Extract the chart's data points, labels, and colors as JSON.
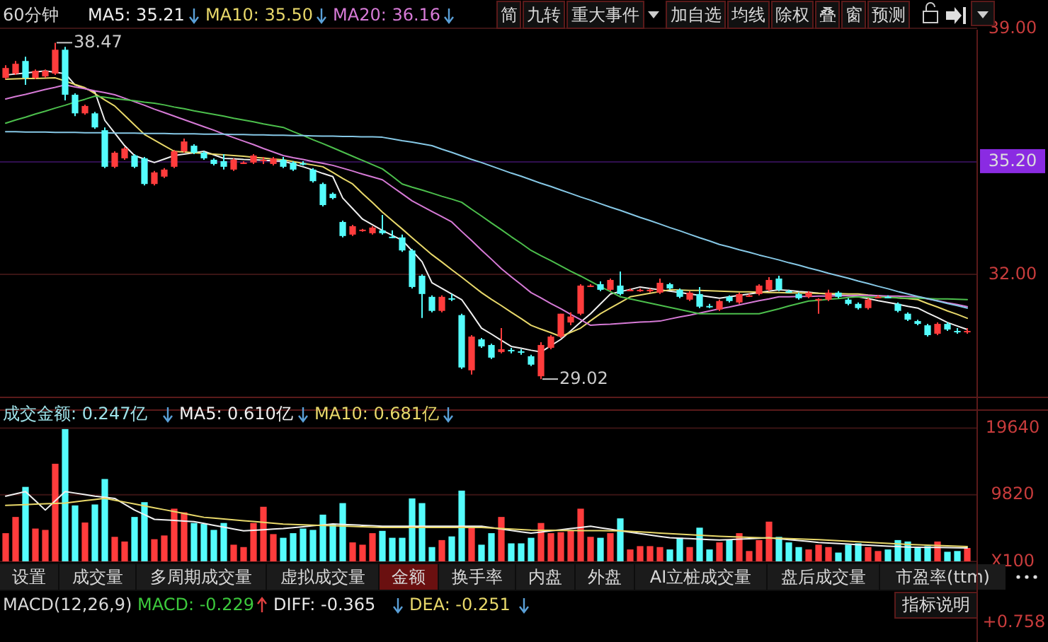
{
  "chart_data": [
    {
      "type": "candlestick",
      "title": "60分钟",
      "legend": "top",
      "grid": "y",
      "tick_labels": "y",
      "categories": [
        null,
        null,
        null,
        null,
        null,
        null,
        null,
        null,
        null,
        null,
        null,
        null,
        null,
        null,
        null,
        null,
        null,
        null,
        null,
        null,
        null,
        null,
        null,
        null,
        null,
        null,
        null,
        null,
        null,
        null,
        null,
        null,
        null,
        null,
        null,
        null,
        null,
        null,
        null,
        null,
        null,
        null,
        null,
        null,
        null,
        null,
        null,
        null,
        null,
        null,
        null,
        null,
        null,
        null,
        null,
        null,
        null,
        null,
        null,
        null,
        null,
        null,
        null,
        null,
        null,
        null,
        null,
        null,
        null,
        null,
        null,
        null,
        null,
        null,
        null,
        null,
        null,
        null,
        null,
        null,
        null,
        null,
        null,
        null,
        null,
        null,
        null,
        null,
        null,
        null,
        null,
        null,
        null,
        null,
        null,
        null,
        null,
        null
      ],
      "ylim": [
        28.5,
        39.0
      ],
      "yticks": [
        {
          "value": 39,
          "label": "39.00"
        },
        {
          "value": 32,
          "label": "32.00"
        }
      ],
      "ref_lines": [
        {
          "axis": "y",
          "value": 35.2,
          "label": "35.20",
          "color": "#8a2be2"
        }
      ],
      "ohlc": [
        [
          37.59,
          37.95,
          37.55,
          37.87
        ],
        [
          37.71,
          38.07,
          37.67,
          37.99
        ],
        [
          38.07,
          38.19,
          37.39,
          37.59
        ],
        [
          37.59,
          37.83,
          37.55,
          37.79
        ],
        [
          37.63,
          37.83,
          37.59,
          37.79
        ],
        [
          37.71,
          38.59,
          37.67,
          38.39
        ],
        [
          38.39,
          38.47,
          36.95,
          37.11
        ],
        [
          37.11,
          37.15,
          36.5,
          36.58
        ],
        [
          36.58,
          36.83,
          36.54,
          36.79
        ],
        [
          36.58,
          36.62,
          36.14,
          36.18
        ],
        [
          36.1,
          36.18,
          35.02,
          35.06
        ],
        [
          35.06,
          35.5,
          35.02,
          35.46
        ],
        [
          35.3,
          35.62,
          35.26,
          35.58
        ],
        [
          35.38,
          35.42,
          35.02,
          35.06
        ],
        [
          35.3,
          35.34,
          34.53,
          34.57
        ],
        [
          34.57,
          34.94,
          34.53,
          34.9
        ],
        [
          34.78,
          35.02,
          34.74,
          34.98
        ],
        [
          35.06,
          35.54,
          35.02,
          35.5
        ],
        [
          35.5,
          35.86,
          35.46,
          35.78
        ],
        [
          35.66,
          35.7,
          35.42,
          35.46
        ],
        [
          35.46,
          35.5,
          35.26,
          35.3
        ],
        [
          35.26,
          35.3,
          35.1,
          35.14
        ],
        [
          35.22,
          35.42,
          34.98,
          35.06
        ],
        [
          34.98,
          35.3,
          34.94,
          35.26
        ],
        [
          35.16,
          35.22,
          35.14,
          35.18
        ],
        [
          35.18,
          35.42,
          35.14,
          35.38
        ],
        [
          35.24,
          35.34,
          35.14,
          35.26
        ],
        [
          35.14,
          35.34,
          35.1,
          35.3
        ],
        [
          35.26,
          35.34,
          35.02,
          35.06
        ],
        [
          35.18,
          35.22,
          34.94,
          34.98
        ],
        [
          35.16,
          35.22,
          35.1,
          35.14
        ],
        [
          34.98,
          35.02,
          34.61,
          34.65
        ],
        [
          34.57,
          34.61,
          33.93,
          33.97
        ],
        [
          34.29,
          34.33,
          34.13,
          34.17
        ],
        [
          33.49,
          33.53,
          33.05,
          33.09
        ],
        [
          33.13,
          33.41,
          33.09,
          33.37
        ],
        [
          33.25,
          33.29,
          33.21,
          33.27
        ],
        [
          33.17,
          33.37,
          33.13,
          33.33
        ],
        [
          33.25,
          33.69,
          33.13,
          33.17
        ],
        [
          33.07,
          33.25,
          33.03,
          33.05
        ],
        [
          33.05,
          33.13,
          32.64,
          32.68
        ],
        [
          32.68,
          32.72,
          31.6,
          31.64
        ],
        [
          31.96,
          32.0,
          30.76,
          31.44
        ],
        [
          31.36,
          31.4,
          30.92,
          30.96
        ],
        [
          30.96,
          31.4,
          30.92,
          31.36
        ],
        [
          31.32,
          31.44,
          31.24,
          31.3
        ],
        [
          30.84,
          30.88,
          29.31,
          29.35
        ],
        [
          29.27,
          30.27,
          29.15,
          30.23
        ],
        [
          30.15,
          30.19,
          29.91,
          29.95
        ],
        [
          29.99,
          30.03,
          29.59,
          29.63
        ],
        [
          29.79,
          30.47,
          29.75,
          29.87
        ],
        [
          29.85,
          29.91,
          29.75,
          29.83
        ],
        [
          29.81,
          29.87,
          29.71,
          29.79
        ],
        [
          29.67,
          29.71,
          29.39,
          29.43
        ],
        [
          29.1,
          30.07,
          29.02,
          29.99
        ],
        [
          29.91,
          30.27,
          29.87,
          30.23
        ],
        [
          30.23,
          30.88,
          30.19,
          30.88
        ],
        [
          30.63,
          30.92,
          30.55,
          30.8
        ],
        [
          30.88,
          31.72,
          30.84,
          31.68
        ],
        [
          31.66,
          31.72,
          31.64,
          31.68
        ],
        [
          31.72,
          31.8,
          31.52,
          31.56
        ],
        [
          31.56,
          31.88,
          31.52,
          31.84
        ],
        [
          31.68,
          32.08,
          31.4,
          31.44
        ],
        [
          31.54,
          31.6,
          31.52,
          31.56
        ],
        [
          31.54,
          31.6,
          31.5,
          31.56
        ],
        [
          31.52,
          31.6,
          31.48,
          31.56
        ],
        [
          31.48,
          31.88,
          31.44,
          31.76
        ],
        [
          31.72,
          31.76,
          31.56,
          31.6
        ],
        [
          31.56,
          31.6,
          31.32,
          31.36
        ],
        [
          31.28,
          31.52,
          31.24,
          31.48
        ],
        [
          31.44,
          31.64,
          31.04,
          31.08
        ],
        [
          31.1,
          31.16,
          31.04,
          31.08
        ],
        [
          31.0,
          31.28,
          30.96,
          31.24
        ],
        [
          31.36,
          31.4,
          31.2,
          31.24
        ],
        [
          31.2,
          31.48,
          31.16,
          31.44
        ],
        [
          31.38,
          31.44,
          31.36,
          31.4
        ],
        [
          31.44,
          31.72,
          31.4,
          31.68
        ],
        [
          31.56,
          31.92,
          31.52,
          31.84
        ],
        [
          31.88,
          31.96,
          31.52,
          31.56
        ],
        [
          31.52,
          31.56,
          31.48,
          31.5
        ],
        [
          31.44,
          31.48,
          31.28,
          31.32
        ],
        [
          31.36,
          31.52,
          31.32,
          31.48
        ],
        [
          31.28,
          31.32,
          30.88,
          31.3
        ],
        [
          31.28,
          31.56,
          31.24,
          31.48
        ],
        [
          31.48,
          31.52,
          31.32,
          31.36
        ],
        [
          31.28,
          31.32,
          31.12,
          31.16
        ],
        [
          31.16,
          31.2,
          31.0,
          31.04
        ],
        [
          31.04,
          31.32,
          31.0,
          31.28
        ],
        [
          31.34,
          31.4,
          31.32,
          31.36
        ],
        [
          31.36,
          31.4,
          31.32,
          31.34
        ],
        [
          31.16,
          31.2,
          30.92,
          30.96
        ],
        [
          30.88,
          30.92,
          30.67,
          30.71
        ],
        [
          30.67,
          30.71,
          30.55,
          30.59
        ],
        [
          30.55,
          30.59,
          30.23,
          30.27
        ],
        [
          30.31,
          30.63,
          30.27,
          30.59
        ],
        [
          30.59,
          30.63,
          30.39,
          30.43
        ],
        [
          30.39,
          30.47,
          30.31,
          30.37
        ],
        [
          30.37,
          30.47,
          30.31,
          30.39
        ]
      ],
      "colors": [
        "#ff3c3c",
        "#ff3c3c",
        "#54fcfc",
        "#ff3c3c",
        "#ff3c3c",
        "#ff3c3c",
        "#54fcfc",
        "#54fcfc",
        "#ff3c3c",
        "#54fcfc",
        "#54fcfc",
        "#ff3c3c",
        "#ff3c3c",
        "#54fcfc",
        "#54fcfc",
        "#ff3c3c",
        "#ff3c3c",
        "#ff3c3c",
        "#ff3c3c",
        "#54fcfc",
        "#54fcfc",
        "#54fcfc",
        "#54fcfc",
        "#ff3c3c",
        "#ff3c3c",
        "#ff3c3c",
        "#ff3c3c",
        "#ff3c3c",
        "#54fcfc",
        "#54fcfc",
        "#54fcfc",
        "#54fcfc",
        "#54fcfc",
        "#54fcfc",
        "#54fcfc",
        "#ff3c3c",
        "#ff3c3c",
        "#ff3c3c",
        "#54fcfc",
        "#54fcfc",
        "#54fcfc",
        "#54fcfc",
        "#54fcfc",
        "#54fcfc",
        "#ff3c3c",
        "#54fcfc",
        "#54fcfc",
        "#ff3c3c",
        "#54fcfc",
        "#54fcfc",
        "#ff3c3c",
        "#54fcfc",
        "#54fcfc",
        "#54fcfc",
        "#ff3c3c",
        "#ff3c3c",
        "#ff3c3c",
        "#ff3c3c",
        "#ff3c3c",
        "#ff3c3c",
        "#54fcfc",
        "#ff3c3c",
        "#54fcfc",
        "#ff3c3c",
        "#ff3c3c",
        "#ff3c3c",
        "#ff3c3c",
        "#54fcfc",
        "#54fcfc",
        "#ff3c3c",
        "#54fcfc",
        "#54fcfc",
        "#ff3c3c",
        "#54fcfc",
        "#ff3c3c",
        "#ff3c3c",
        "#ff3c3c",
        "#ff3c3c",
        "#54fcfc",
        "#54fcfc",
        "#54fcfc",
        "#ff3c3c",
        "#ff3c3c",
        "#ff3c3c",
        "#54fcfc",
        "#54fcfc",
        "#54fcfc",
        "#ff3c3c",
        "#ff3c3c",
        "#54fcfc",
        "#54fcfc",
        "#54fcfc",
        "#54fcfc",
        "#54fcfc",
        "#ff3c3c",
        "#54fcfc",
        "#54fcfc",
        "#ff3c3c"
      ],
      "series": [
        {
          "type": "line",
          "name": "MA5: 35.21",
          "color": "#f0f0f0",
          "values": [
            37.67,
            37.7,
            37.73,
            37.76,
            37.79,
            37.75,
            37.71,
            37.39,
            37.29,
            37.19,
            36.38,
            36.02,
            35.66,
            35.38,
            35.28,
            35.18,
            35.28,
            35.38,
            35.42,
            35.46,
            35.5,
            35.4,
            35.3,
            35.29,
            35.27,
            35.26,
            35.25,
            35.23,
            35.22,
            35.14,
            35.06,
            34.97,
            34.87,
            34.78,
            34.17,
            33.87,
            33.57,
            33.41,
            33.25,
            33.11,
            32.97,
            32.67,
            32.36,
            31.76,
            31.6,
            31.44,
            31.28,
            30.88,
            30.47,
            30.3,
            30.12,
            29.95,
            29.9,
            29.84,
            29.79,
            29.97,
            30.15,
            30.39,
            30.64,
            30.88,
            31.16,
            31.44,
            31.51,
            31.57,
            31.64,
            31.6,
            31.56,
            31.52,
            31.48,
            31.44,
            31.4,
            31.36,
            31.32,
            31.36,
            31.4,
            31.44,
            31.48,
            31.52,
            31.56,
            31.54,
            31.51,
            31.49,
            31.46,
            31.44,
            31.41,
            31.39,
            31.36,
            31.31,
            31.25,
            31.2,
            31.15,
            31.09,
            31.04,
            30.9,
            30.77,
            30.63,
            30.53,
            30.43
          ]
        },
        {
          "type": "line",
          "name": "MA10: 35.50",
          "color": "#e8d86a",
          "values": [
            37.55,
            37.56,
            37.57,
            37.57,
            37.58,
            37.59,
            37.5,
            37.4,
            37.31,
            37.14,
            36.96,
            36.79,
            36.52,
            36.25,
            35.98,
            35.82,
            35.66,
            35.5,
            35.48,
            35.46,
            35.44,
            35.42,
            35.4,
            35.38,
            35.36,
            35.33,
            35.31,
            35.28,
            35.26,
            35.21,
            35.16,
            35.11,
            35.06,
            34.9,
            34.73,
            34.57,
            34.3,
            34.04,
            33.77,
            33.53,
            33.29,
            33.04,
            32.8,
            32.56,
            32.35,
            32.13,
            31.92,
            31.7,
            31.48,
            31.29,
            31.11,
            30.92,
            30.74,
            30.55,
            30.44,
            30.34,
            30.23,
            30.35,
            30.47,
            30.68,
            30.88,
            31.04,
            31.2,
            31.36,
            31.41,
            31.46,
            31.51,
            31.56,
            31.55,
            31.54,
            31.54,
            31.53,
            31.52,
            31.51,
            31.5,
            31.5,
            31.49,
            31.48,
            31.48,
            31.47,
            31.47,
            31.46,
            31.46,
            31.45,
            31.45,
            31.44,
            31.44,
            31.41,
            31.39,
            31.36,
            31.33,
            31.31,
            31.28,
            31.17,
            31.07,
            30.96,
            30.86,
            30.75
          ]
        },
        {
          "type": "line",
          "name": "MA20: 36.16",
          "color": "#d67ad6",
          "values": [
            36.99,
            37.06,
            37.12,
            37.19,
            37.26,
            37.32,
            37.39,
            37.33,
            37.28,
            37.22,
            37.17,
            37.11,
            37.01,
            36.91,
            36.81,
            36.7,
            36.6,
            36.5,
            36.4,
            36.3,
            36.2,
            36.1,
            35.99,
            35.89,
            35.79,
            35.69,
            35.58,
            35.48,
            35.38,
            35.32,
            35.27,
            35.21,
            35.16,
            35.1,
            35.02,
            34.94,
            34.85,
            34.77,
            34.69,
            34.49,
            34.29,
            34.09,
            33.94,
            33.79,
            33.64,
            33.49,
            33.22,
            32.96,
            32.69,
            32.43,
            32.16,
            31.93,
            31.71,
            31.48,
            31.33,
            31.17,
            31.02,
            30.86,
            30.71,
            30.55,
            30.57,
            30.58,
            30.6,
            30.62,
            30.64,
            30.65,
            30.67,
            30.73,
            30.79,
            30.84,
            30.9,
            30.96,
            31.02,
            31.07,
            31.13,
            31.19,
            31.25,
            31.3,
            31.36,
            31.36,
            31.37,
            31.37,
            31.38,
            31.38,
            31.39,
            31.39,
            31.4,
            31.4,
            31.39,
            31.38,
            31.38,
            31.37,
            31.36,
            31.3,
            31.25,
            31.19,
            31.14,
            31.08
          ]
        },
        {
          "type": "line",
          "color": "#4cbf4c",
          "values": [
            36.3,
            36.39,
            36.47,
            36.56,
            36.64,
            36.73,
            36.81,
            36.9,
            36.98,
            37.07,
            37.04,
            37.0,
            36.97,
            36.94,
            36.9,
            36.87,
            36.82,
            36.76,
            36.71,
            36.65,
            36.6,
            36.55,
            36.5,
            36.44,
            36.39,
            36.34,
            36.28,
            36.23,
            36.18,
            36.06,
            35.95,
            35.83,
            35.72,
            35.6,
            35.48,
            35.36,
            35.24,
            35.12,
            35.0,
            34.79,
            34.57,
            34.48,
            34.4,
            34.31,
            34.22,
            34.14,
            34.05,
            33.85,
            33.66,
            33.46,
            33.27,
            33.07,
            32.88,
            32.68,
            32.53,
            32.39,
            32.24,
            32.09,
            31.95,
            31.8,
            31.65,
            31.51,
            31.36,
            31.3,
            31.24,
            31.18,
            31.12,
            31.06,
            31.0,
            30.94,
            30.88,
            30.88,
            30.88,
            30.88,
            30.88,
            30.88,
            30.88,
            30.95,
            31.02,
            31.1,
            31.17,
            31.24,
            31.26,
            31.29,
            31.31,
            31.34,
            31.36,
            31.35,
            31.35,
            31.34,
            31.33,
            31.32,
            31.32,
            31.31,
            31.3,
            31.3,
            31.29,
            31.28
          ]
        },
        {
          "type": "line",
          "color": "#86c8e6",
          "values": [
            36.06,
            36.06,
            36.05,
            36.05,
            36.05,
            36.04,
            36.04,
            36.04,
            36.03,
            36.03,
            36.03,
            36.02,
            36.02,
            36.02,
            36.01,
            36.01,
            36.01,
            36.0,
            36.0,
            36.0,
            35.99,
            35.99,
            35.99,
            35.98,
            35.98,
            35.97,
            35.97,
            35.96,
            35.96,
            35.95,
            35.95,
            35.94,
            35.93,
            35.93,
            35.92,
            35.92,
            35.91,
            35.91,
            35.9,
            35.85,
            35.8,
            35.76,
            35.71,
            35.66,
            35.56,
            35.47,
            35.37,
            35.27,
            35.18,
            35.08,
            34.98,
            34.88,
            34.79,
            34.69,
            34.59,
            34.5,
            34.4,
            34.3,
            34.2,
            34.11,
            34.01,
            33.91,
            33.82,
            33.72,
            33.62,
            33.53,
            33.43,
            33.33,
            33.24,
            33.14,
            33.04,
            32.95,
            32.85,
            32.78,
            32.7,
            32.63,
            32.55,
            32.48,
            32.41,
            32.33,
            32.26,
            32.18,
            32.11,
            32.03,
            31.96,
            31.89,
            31.81,
            31.74,
            31.66,
            31.59,
            31.51,
            31.44,
            31.37,
            31.31,
            31.24,
            31.17,
            31.11,
            31.04
          ]
        }
      ],
      "annotations": [
        "简",
        "九转",
        "重大事件",
        "加自选",
        "均线",
        "除权",
        "叠",
        "窗",
        "预测",
        "38.47",
        "29.02"
      ]
    },
    {
      "type": "bar",
      "legend": "top left",
      "grid": "y",
      "tick_labels": "y",
      "categories": [
        null,
        null,
        null,
        null,
        null,
        null,
        null,
        null,
        null,
        null,
        null,
        null,
        null,
        null,
        null,
        null,
        null,
        null,
        null,
        null,
        null,
        null,
        null,
        null,
        null,
        null,
        null,
        null,
        null,
        null,
        null,
        null,
        null,
        null,
        null,
        null,
        null,
        null,
        null,
        null,
        null,
        null,
        null,
        null,
        null,
        null,
        null,
        null,
        null,
        null,
        null,
        null,
        null,
        null,
        null,
        null,
        null,
        null,
        null,
        null,
        null,
        null,
        null,
        null,
        null,
        null,
        null,
        null,
        null,
        null,
        null,
        null,
        null,
        null,
        null,
        null,
        null,
        null,
        null,
        null,
        null,
        null,
        null,
        null,
        null,
        null,
        null,
        null,
        null,
        null,
        null,
        null,
        null,
        null,
        null,
        null,
        null,
        null
      ],
      "ylim": [
        0,
        22300
      ],
      "yticks": [
        19640,
        9820,
        {
          "value": 0,
          "label": "X100"
        }
      ],
      "series": [
        {
          "type": "bar",
          "name": "成交金额: 0.247亿",
          "color": "#9fe3ea",
          "values": [
            4160,
            6550,
            10980,
            4840,
            4640,
            14390,
            19500,
            8250,
            5730,
            8390,
            12140,
            3620,
            2930,
            6550,
            8730,
            3270,
            3820,
            7770,
            7230,
            5660,
            5520,
            4640,
            5660,
            2460,
            2110,
            5660,
            8050,
            4020,
            3480,
            4160,
            4840,
            4640,
            6890,
            5520,
            8590,
            2800,
            2460,
            4160,
            4500,
            3480,
            3480,
            9280,
            8590,
            2110,
            3140,
            3680,
            10430,
            5180,
            2460,
            4160,
            6550,
            2660,
            2660,
            3480,
            5660,
            4160,
            4300,
            4500,
            7770,
            3620,
            3480,
            4160,
            6340,
            1760,
            2250,
            2250,
            2110,
            1760,
            3480,
            2110,
            4970,
            1760,
            2800,
            3140,
            4160,
            1530,
            3140,
            5860,
            3620,
            2800,
            2110,
            1760,
            2460,
            2110,
            1300,
            2460,
            2660,
            2110,
            1530,
            1760,
            3140,
            2930,
            1980,
            2250,
            2930,
            1420,
            1530,
            1980
          ],
          "colors": [
            "#ff3c3c",
            "#ff3c3c",
            "#54fcfc",
            "#ff3c3c",
            "#ff3c3c",
            "#ff3c3c",
            "#54fcfc",
            "#54fcfc",
            "#ff3c3c",
            "#54fcfc",
            "#54fcfc",
            "#ff3c3c",
            "#ff3c3c",
            "#54fcfc",
            "#54fcfc",
            "#ff3c3c",
            "#ff3c3c",
            "#ff3c3c",
            "#ff3c3c",
            "#54fcfc",
            "#54fcfc",
            "#54fcfc",
            "#54fcfc",
            "#ff3c3c",
            "#ff3c3c",
            "#ff3c3c",
            "#ff3c3c",
            "#ff3c3c",
            "#54fcfc",
            "#54fcfc",
            "#54fcfc",
            "#54fcfc",
            "#54fcfc",
            "#54fcfc",
            "#54fcfc",
            "#ff3c3c",
            "#ff3c3c",
            "#ff3c3c",
            "#54fcfc",
            "#54fcfc",
            "#54fcfc",
            "#54fcfc",
            "#54fcfc",
            "#54fcfc",
            "#ff3c3c",
            "#54fcfc",
            "#54fcfc",
            "#ff3c3c",
            "#54fcfc",
            "#54fcfc",
            "#ff3c3c",
            "#54fcfc",
            "#54fcfc",
            "#54fcfc",
            "#ff3c3c",
            "#ff3c3c",
            "#ff3c3c",
            "#ff3c3c",
            "#ff3c3c",
            "#ff3c3c",
            "#54fcfc",
            "#ff3c3c",
            "#54fcfc",
            "#ff3c3c",
            "#ff3c3c",
            "#ff3c3c",
            "#ff3c3c",
            "#54fcfc",
            "#54fcfc",
            "#ff3c3c",
            "#54fcfc",
            "#54fcfc",
            "#ff3c3c",
            "#54fcfc",
            "#ff3c3c",
            "#ff3c3c",
            "#ff3c3c",
            "#ff3c3c",
            "#54fcfc",
            "#54fcfc",
            "#54fcfc",
            "#ff3c3c",
            "#ff3c3c",
            "#ff3c3c",
            "#54fcfc",
            "#54fcfc",
            "#54fcfc",
            "#ff3c3c",
            "#ff3c3c",
            "#54fcfc",
            "#54fcfc",
            "#54fcfc",
            "#54fcfc",
            "#54fcfc",
            "#ff3c3c",
            "#54fcfc",
            "#54fcfc",
            "#ff3c3c"
          ]
        },
        {
          "type": "line",
          "name": "MA5: 0.610亿",
          "color": "#f0f0f0",
          "values": [
            9620,
            9960,
            10300,
            8940,
            7570,
            8940,
            10300,
            10070,
            9850,
            9620,
            9450,
            9280,
            8430,
            7570,
            6890,
            6200,
            6120,
            6040,
            5950,
            5870,
            5600,
            5320,
            5050,
            4770,
            4500,
            4590,
            4670,
            4760,
            4840,
            4980,
            5110,
            5250,
            5380,
            5520,
            5450,
            5380,
            5320,
            5250,
            5180,
            5180,
            5180,
            5180,
            5180,
            5180,
            5180,
            5180,
            5180,
            5180,
            5180,
            4980,
            4770,
            4570,
            4360,
            4160,
            4330,
            4500,
            4670,
            4840,
            5010,
            5180,
            4950,
            4730,
            4500,
            4300,
            4090,
            3890,
            3680,
            3480,
            3410,
            3350,
            3280,
            3210,
            3140,
            3210,
            3280,
            3340,
            3410,
            3480,
            3340,
            3210,
            3070,
            2940,
            2800,
            2720,
            2630,
            2550,
            2460,
            2390,
            2320,
            2250,
            2180,
            2110,
            2090,
            2070,
            2050,
            2020,
            2000,
            1980
          ]
        },
        {
          "type": "line",
          "name": "MA10: 0.681亿",
          "color": "#e8d86a",
          "values": [
            8250,
            8310,
            8370,
            8430,
            8480,
            8540,
            8600,
            8780,
            8950,
            9130,
            9300,
            9020,
            8740,
            8460,
            8180,
            7900,
            7620,
            7340,
            7060,
            6780,
            6500,
            6380,
            6250,
            6130,
            6000,
            5880,
            5750,
            5630,
            5500,
            5450,
            5400,
            5350,
            5300,
            5250,
            5200,
            5150,
            5100,
            5050,
            5000,
            5000,
            5000,
            5000,
            5000,
            5000,
            5000,
            5000,
            5000,
            5000,
            5000,
            4920,
            4840,
            4760,
            4680,
            4600,
            4590,
            4580,
            4570,
            4560,
            4540,
            4530,
            4520,
            4510,
            4500,
            4420,
            4340,
            4260,
            4180,
            4100,
            4020,
            3940,
            3860,
            3780,
            3700,
            3650,
            3600,
            3550,
            3500,
            3450,
            3400,
            3350,
            3300,
            3250,
            3200,
            3120,
            3040,
            2970,
            2890,
            2810,
            2730,
            2660,
            2580,
            2500,
            2450,
            2400,
            2350,
            2300,
            2250,
            2200
          ]
        }
      ],
      "annotations": [
        "设置",
        "成交量",
        "多周期成交量",
        "虚拟成交量",
        "金额",
        "换手率",
        "内盘",
        "外盘",
        "AI立桩成交量",
        "盘后成交量",
        "市盈率(ttm)"
      ]
    },
    {
      "type": "other",
      "title": "MACD(12,26,9)",
      "annotations": [
        "MACD: -0.229",
        "DIFF: -0.365",
        "DEA: -0.251",
        "指标说明",
        "+0.758"
      ]
    }
  ]
}
